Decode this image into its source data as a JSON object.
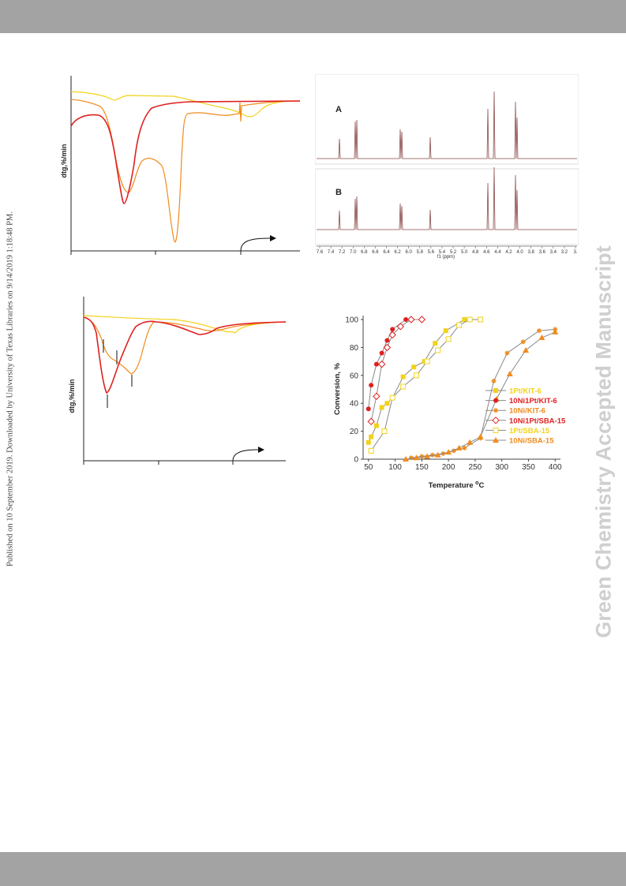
{
  "page": {
    "side_note": "Published on 10 September 2019. Downloaded by University of Texas Libraries on 9/14/2019 1:18:48 PM.",
    "watermark": "Green Chemistry Accepted Manuscript"
  },
  "dtg_top": {
    "ylabel": "dtg,%/min"
  },
  "dtg_bottom": {
    "ylabel": "dtg,%/min"
  },
  "nmr": {
    "spectra": [
      {
        "label": "A"
      },
      {
        "label": "B"
      }
    ],
    "axis_ticks": [
      "7.6",
      "7.4",
      "7.2",
      "7.0",
      "6.8",
      "6.6",
      "6.4",
      "6.2",
      "6.0",
      "5.8",
      "5.6",
      "5.4",
      "5.2",
      "5.0",
      "4.8",
      "4.6",
      "4.4",
      "4.2",
      "4.0",
      "3.8",
      "3.6",
      "3.4",
      "3.2",
      "3."
    ],
    "axis_label": "f1 (ppm)"
  },
  "colors": {
    "yellow": "#f2d21b",
    "red": "#e02020",
    "orange": "#f08b1d",
    "gray": "#888888",
    "spectrum": "#8b4a4a"
  },
  "chart_data": {
    "type": "line",
    "xlabel": "Temperature °C",
    "ylabel": "Conversion, %",
    "xlim": [
      40,
      410
    ],
    "ylim": [
      0,
      100
    ],
    "xticks": [
      50,
      100,
      150,
      200,
      250,
      300,
      350,
      400
    ],
    "yticks": [
      0,
      20,
      40,
      60,
      80,
      100
    ],
    "legend_position": "right-middle",
    "series": [
      {
        "name": "1Pt/KIT-6",
        "color": "#f2d21b",
        "marker": "square",
        "x": [
          50,
          55,
          65,
          75,
          85,
          95,
          115,
          135,
          155,
          175,
          195,
          230,
          260
        ],
        "y": [
          12,
          16,
          24,
          37,
          40,
          44,
          59,
          66,
          70,
          83,
          92,
          100,
          100
        ]
      },
      {
        "name": "10Ni1Pt/KIT-6",
        "color": "#e02020",
        "marker": "circle",
        "x": [
          50,
          55,
          65,
          75,
          85,
          95,
          120
        ],
        "y": [
          36,
          53,
          68,
          76,
          85,
          93,
          100
        ]
      },
      {
        "name": "10Ni/KIT-6",
        "color": "#f08b1d",
        "marker": "star",
        "x": [
          130,
          150,
          170,
          190,
          210,
          230,
          260,
          285,
          310,
          340,
          370,
          400
        ],
        "y": [
          1,
          2,
          3,
          4,
          6,
          8,
          15,
          56,
          76,
          84,
          92,
          93
        ]
      },
      {
        "name": "10Ni1Pt/SBA-15",
        "color": "#e02020",
        "marker": "open-diamond",
        "x": [
          55,
          65,
          75,
          85,
          95,
          110,
          130,
          150
        ],
        "y": [
          27,
          45,
          68,
          80,
          89,
          95,
          100,
          100
        ]
      },
      {
        "name": "1Pt/SBA-15",
        "color": "#f2d21b",
        "marker": "open-square",
        "x": [
          55,
          80,
          95,
          115,
          140,
          160,
          180,
          200,
          220,
          240,
          260
        ],
        "y": [
          6,
          20,
          44,
          52,
          60,
          70,
          78,
          86,
          96,
          100,
          100
        ]
      },
      {
        "name": "10Ni/SBA-15",
        "color": "#f08b1d",
        "marker": "triangle",
        "x": [
          120,
          140,
          160,
          180,
          200,
          220,
          240,
          260,
          290,
          315,
          345,
          375,
          400
        ],
        "y": [
          0,
          1,
          2,
          3,
          5,
          8,
          12,
          16,
          43,
          61,
          78,
          87,
          91
        ]
      }
    ]
  }
}
